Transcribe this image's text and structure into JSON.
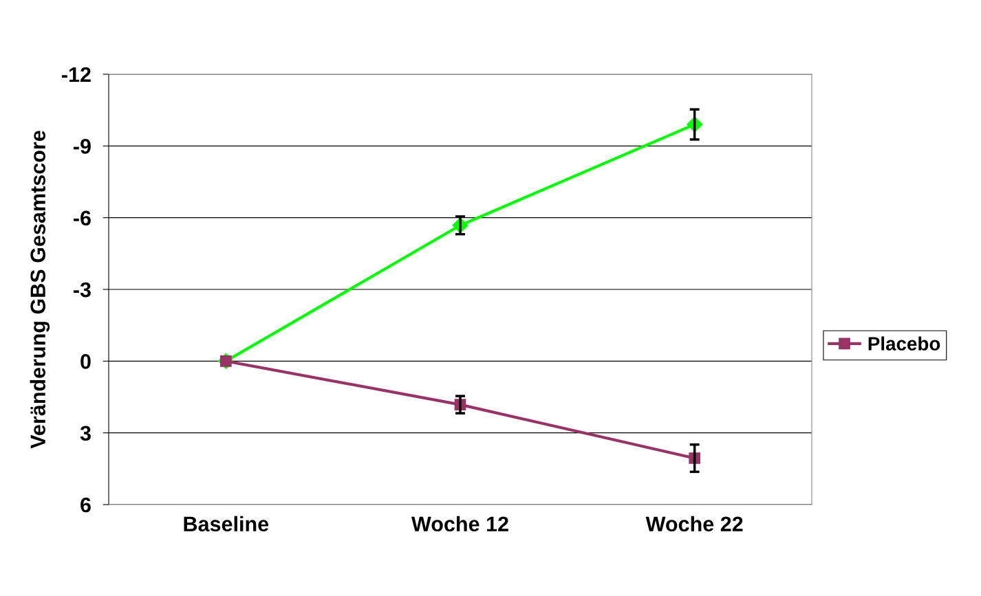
{
  "chart_data": {
    "type": "line",
    "ylabel": "Veränderung GBS Gesamtscore",
    "categories": [
      "Baseline",
      "Woche 12",
      "Woche 22"
    ],
    "series": [
      {
        "color": "#00ff00",
        "marker": "diamond",
        "values": [
          0,
          -5.68,
          -9.9
        ],
        "errors": [
          null,
          0.37,
          0.63
        ]
      },
      {
        "name": "Placebo",
        "color": "#993366",
        "marker": "square",
        "values": [
          0,
          1.82,
          4.06
        ],
        "errors": [
          null,
          0.36,
          0.57
        ]
      }
    ],
    "ylim": [
      6,
      -12
    ],
    "yticks": [
      {
        "value": -12,
        "label": "-12"
      },
      {
        "value": -9,
        "label": "-9"
      },
      {
        "value": -6,
        "label": "-6"
      },
      {
        "value": -3,
        "label": "-3"
      },
      0,
      3,
      6
    ],
    "grid": "y",
    "legend": "right",
    "line_style": "solid"
  }
}
